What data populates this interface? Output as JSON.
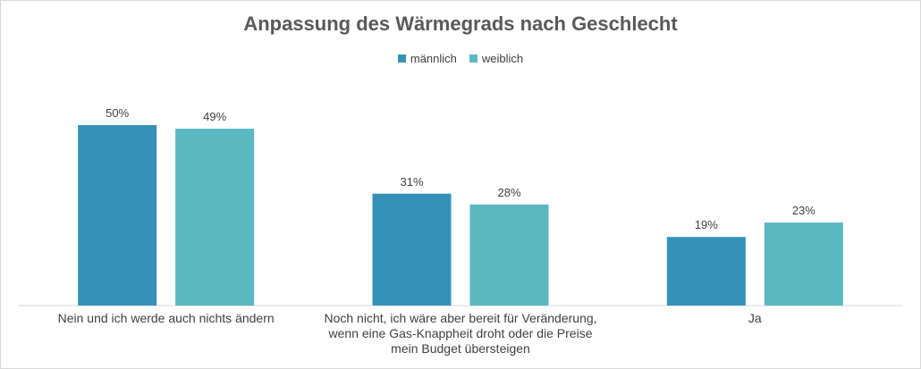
{
  "chart_data": {
    "type": "bar",
    "title": "Anpassung des Wärmegrads nach Geschlecht",
    "categories": [
      [
        "Nein und ich werde auch nichts ändern"
      ],
      [
        "Noch nicht, ich wäre aber bereit für Veränderung,",
        "wenn eine Gas-Knappheit droht oder die Preise",
        "mein Budget übersteigen"
      ],
      [
        "Ja"
      ]
    ],
    "series": [
      {
        "name": "männlich",
        "values": [
          50,
          31,
          19
        ],
        "labels": [
          "50%",
          "31%",
          "19%"
        ],
        "color": "#3591b8"
      },
      {
        "name": "weiblich",
        "values": [
          49,
          28,
          23
        ],
        "labels": [
          "49%",
          "28%",
          "23%"
        ],
        "color": "#5bb8c1"
      }
    ],
    "ylim": [
      0,
      60
    ],
    "legend_position": "top",
    "grid": false
  }
}
